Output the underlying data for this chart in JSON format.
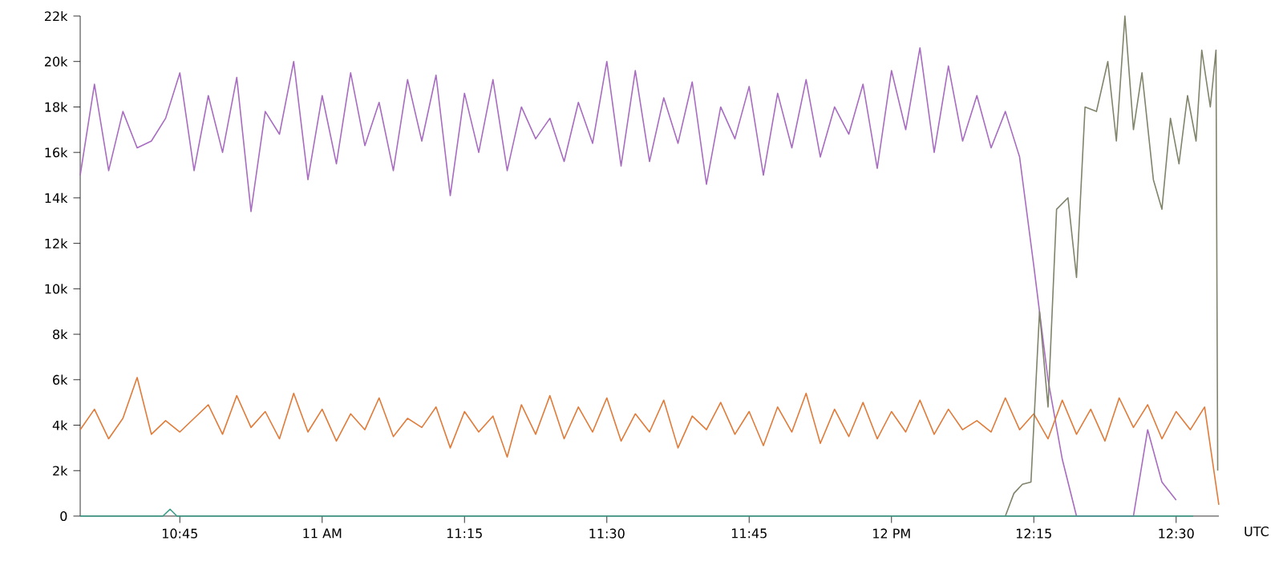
{
  "chart_data": {
    "type": "line",
    "xlabel": "UTC",
    "xlim": [
      10.575,
      12.575
    ],
    "ylim": [
      0,
      22000
    ],
    "xticks": [
      {
        "value": 10.75,
        "label": "10:45"
      },
      {
        "value": 11,
        "label": "11 AM"
      },
      {
        "value": 11.25,
        "label": "11:15"
      },
      {
        "value": 11.5,
        "label": "11:30"
      },
      {
        "value": 11.75,
        "label": "11:45"
      },
      {
        "value": 12,
        "label": "12 PM"
      },
      {
        "value": 12.25,
        "label": "12:15"
      },
      {
        "value": 12.5,
        "label": "12:30"
      }
    ],
    "yticks": [
      {
        "value": 0,
        "label": "0"
      },
      {
        "value": 2000,
        "label": "2k"
      },
      {
        "value": 4000,
        "label": "4k"
      },
      {
        "value": 6000,
        "label": "6k"
      },
      {
        "value": 8000,
        "label": "8k"
      },
      {
        "value": 10000,
        "label": "10k"
      },
      {
        "value": 12000,
        "label": "12k"
      },
      {
        "value": 14000,
        "label": "14k"
      },
      {
        "value": 16000,
        "label": "16k"
      },
      {
        "value": 18000,
        "label": "18k"
      },
      {
        "value": 20000,
        "label": "20k"
      },
      {
        "value": 22000,
        "label": "22k"
      }
    ],
    "x": [
      10.575,
      10.6,
      10.625,
      10.65,
      10.675,
      10.7,
      10.725,
      10.75,
      10.775,
      10.8,
      10.825,
      10.85,
      10.875,
      10.9,
      10.925,
      10.95,
      10.975,
      11.0,
      11.025,
      11.05,
      11.075,
      11.1,
      11.125,
      11.15,
      11.175,
      11.2,
      11.225,
      11.25,
      11.275,
      11.3,
      11.325,
      11.35,
      11.375,
      11.4,
      11.425,
      11.45,
      11.475,
      11.5,
      11.525,
      11.55,
      11.575,
      11.6,
      11.625,
      11.65,
      11.675,
      11.7,
      11.725,
      11.75,
      11.775,
      11.8,
      11.825,
      11.85,
      11.875,
      11.9,
      11.925,
      11.95,
      11.975,
      12.0,
      12.025,
      12.05,
      12.075,
      12.1,
      12.125,
      12.15,
      12.175,
      12.2,
      12.225,
      12.25,
      12.275,
      12.3,
      12.325,
      12.35,
      12.375,
      12.4,
      12.425,
      12.45,
      12.475,
      12.5,
      12.525,
      12.55,
      12.575
    ],
    "grid": false,
    "marker": "none",
    "line_style": "solid",
    "series": [
      {
        "color": "#a86cc1",
        "values": [
          15000,
          19000,
          15200,
          17800,
          16200,
          16500,
          17500,
          19500,
          15200,
          18500,
          16000,
          19300,
          13400,
          17800,
          16800,
          20000,
          14800,
          18500,
          15500,
          19500,
          16300,
          18200,
          15200,
          19200,
          16500,
          19400,
          14100,
          18600,
          16000,
          19200,
          15200,
          18000,
          16600,
          17500,
          15600,
          18200,
          16400,
          20000,
          15400,
          19600,
          15600,
          18400,
          16400,
          19100,
          14600,
          18000,
          16600,
          18900,
          15000,
          18600,
          16200,
          19200,
          15800,
          18000,
          16800,
          19000,
          15300,
          19600,
          17000,
          20600,
          16000,
          19800,
          16500,
          18500,
          16200,
          17800,
          15800,
          11000,
          6000,
          2500,
          0,
          0,
          0,
          0,
          0,
          3800,
          1500,
          700,
          null,
          null,
          null
        ]
      },
      {
        "color": "#e07b39",
        "values": [
          3800,
          4700,
          3400,
          4300,
          6100,
          3600,
          4200,
          3700,
          4300,
          4900,
          3600,
          5300,
          3900,
          4600,
          3400,
          5400,
          3700,
          4700,
          3300,
          4500,
          3800,
          5200,
          3500,
          4300,
          3900,
          4800,
          3000,
          4600,
          3700,
          4400,
          2600,
          4900,
          3600,
          5300,
          3400,
          4800,
          3700,
          5200,
          3300,
          4500,
          3700,
          5100,
          3000,
          4400,
          3800,
          5000,
          3600,
          4600,
          3100,
          4800,
          3700,
          5400,
          3200,
          4700,
          3500,
          5000,
          3400,
          4600,
          3700,
          5100,
          3600,
          4700,
          3800,
          4200,
          3700,
          5200,
          3800,
          4500,
          3400,
          5100,
          3600,
          4700,
          3300,
          5200,
          3900,
          4900,
          3400,
          4600,
          3800,
          4800,
          500
        ]
      },
      {
        "color": "#80846a",
        "x": [
          12.2,
          12.215,
          12.23,
          12.245,
          12.26,
          12.275,
          12.29,
          12.31,
          12.325,
          12.34,
          12.36,
          12.38,
          12.395,
          12.41,
          12.425,
          12.44,
          12.46,
          12.475,
          12.49,
          12.505,
          12.52,
          12.535,
          12.545,
          12.56,
          12.57,
          12.573
        ],
        "values": [
          0,
          1000,
          1400,
          1500,
          9000,
          4800,
          13500,
          14000,
          10500,
          18000,
          17800,
          20000,
          16500,
          22000,
          17000,
          19500,
          14800,
          13500,
          17500,
          15500,
          18500,
          16500,
          20500,
          18000,
          20500,
          2000
        ]
      },
      {
        "color": "#3a9e8a",
        "x": [
          10.575,
          10.72,
          10.733,
          10.745,
          11.0,
          11.5,
          12.0,
          12.53
        ],
        "values": [
          0,
          0,
          300,
          0,
          0,
          0,
          0,
          0
        ]
      }
    ]
  }
}
